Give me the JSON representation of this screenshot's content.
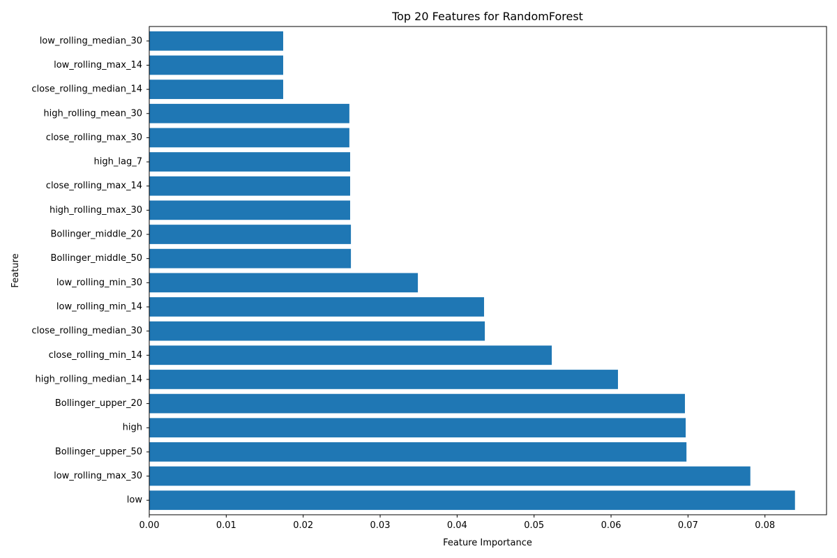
{
  "chart_data": {
    "type": "bar",
    "orientation": "horizontal",
    "title": "Top 20 Features for RandomForest",
    "xlabel": "Feature Importance",
    "ylabel": "Feature",
    "xlim": [
      0,
      0.088
    ],
    "xticks": [
      0.0,
      0.01,
      0.02,
      0.03,
      0.04,
      0.05,
      0.06,
      0.07,
      0.08
    ],
    "xtick_labels": [
      "0.00",
      "0.01",
      "0.02",
      "0.03",
      "0.04",
      "0.05",
      "0.06",
      "0.07",
      "0.08"
    ],
    "grid": false,
    "bar_color": "#1f77b4",
    "categories": [
      "low",
      "low_rolling_max_30",
      "Bollinger_upper_50",
      "high",
      "Bollinger_upper_20",
      "high_rolling_median_14",
      "close_rolling_min_14",
      "close_rolling_median_30",
      "low_rolling_min_14",
      "low_rolling_min_30",
      "Bollinger_middle_50",
      "Bollinger_middle_20",
      "high_rolling_max_30",
      "close_rolling_max_14",
      "high_lag_7",
      "close_rolling_max_30",
      "high_rolling_mean_30",
      "close_rolling_median_14",
      "low_rolling_max_14",
      "low_rolling_median_30"
    ],
    "values": [
      0.0839,
      0.0781,
      0.0698,
      0.0697,
      0.0696,
      0.0609,
      0.0523,
      0.0436,
      0.0435,
      0.0349,
      0.0262,
      0.0262,
      0.0261,
      0.0261,
      0.0261,
      0.026,
      0.026,
      0.0174,
      0.0174,
      0.0174
    ]
  }
}
